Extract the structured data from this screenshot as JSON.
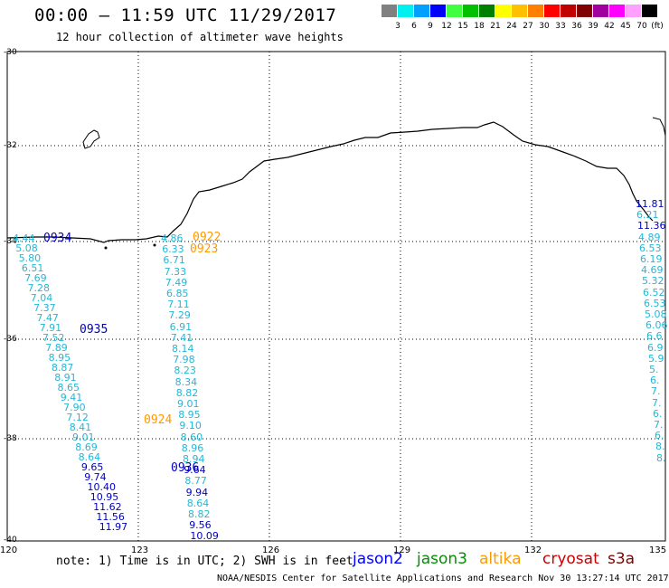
{
  "header": {
    "title": "00:00 – 11:59 UTC 11/29/2017",
    "subtitle": "12 hour collection of altimeter wave heights"
  },
  "legend": {
    "unit": "(ft)",
    "items": [
      {
        "label": "3",
        "color": "#808080"
      },
      {
        "label": "6",
        "color": "#00f0f0"
      },
      {
        "label": "9",
        "color": "#00a0ff"
      },
      {
        "label": "12",
        "color": "#0000ff"
      },
      {
        "label": "15",
        "color": "#40ff40"
      },
      {
        "label": "18",
        "color": "#00c000"
      },
      {
        "label": "21",
        "color": "#008000"
      },
      {
        "label": "24",
        "color": "#ffff00"
      },
      {
        "label": "27",
        "color": "#ffc000"
      },
      {
        "label": "30",
        "color": "#ff8000"
      },
      {
        "label": "33",
        "color": "#ff0000"
      },
      {
        "label": "36",
        "color": "#c00000"
      },
      {
        "label": "39",
        "color": "#800000"
      },
      {
        "label": "42",
        "color": "#a000a0"
      },
      {
        "label": "45",
        "color": "#ff00ff"
      },
      {
        "label": "70",
        "color": "#ffa0ff"
      },
      {
        "label": "",
        "color": "#000000"
      }
    ]
  },
  "axes": {
    "lat_labels": [
      "-30",
      "-32",
      "-34",
      "-36",
      "-38",
      "-40"
    ],
    "lon_labels": [
      "120",
      "123",
      "126",
      "129",
      "132",
      "135"
    ]
  },
  "colors": {
    "jason2": "#0000c0",
    "jason3": "#008000",
    "altika": "#ff9900",
    "cryosat": "#cc0000",
    "s3a": "#800000",
    "cyan": "#22b8d8"
  },
  "passes": {
    "west_a": [
      "4.44",
      "5.08",
      "5.80",
      "6.51",
      "7.69",
      "7.28",
      "7.04",
      "7.37",
      "7.47",
      "7.91",
      "7.52",
      "7.89",
      "8.95",
      "8.87",
      "8.91",
      "8.65",
      "9.41",
      "7.90",
      "7.12",
      "8.41",
      "9.01",
      "8.69",
      "8.64",
      "9.65",
      "9.74",
      "10.40",
      "10.95",
      "11.62",
      "11.56",
      "11.97"
    ],
    "west_b": [
      "4.86",
      "6.33",
      "6.71",
      "7.33",
      "7.49",
      "6.85",
      "7.11",
      "7.29",
      "6.91",
      "7.41",
      "8.14",
      "7.98",
      "8.23",
      "8.34",
      "8.82",
      "9.01",
      "8.95",
      "9.10",
      "8.60",
      "8.96",
      "8.94",
      "9.64",
      "8.77",
      "9.94",
      "8.64",
      "8.82",
      "9.56",
      "10.09"
    ],
    "east": [
      "11.81",
      "6.21",
      "11.36",
      "4.89",
      "6.53",
      "6.19",
      "4.69",
      "5.32",
      "6.52",
      "6.53",
      "5.08",
      "6.06",
      "6.6",
      "6.9",
      "5.9",
      "5.",
      "6.",
      "7.",
      "7.",
      "6.",
      "7.",
      "6.",
      "8.",
      "8."
    ]
  },
  "times": {
    "t0934": "0934",
    "t0935": "0935",
    "t0922": "0922",
    "t0923": "0923",
    "t0924": "0924",
    "t0936": "0936"
  },
  "footer": {
    "note": "note: 1) Time is in UTC; 2) SWH is in feet",
    "sats": [
      "jason2",
      "jason3",
      "altika",
      "cryosat",
      "s3a"
    ],
    "credit": "NOAA/NESDIS Center for Satellite Applications and Research   Nov 30 13:27:14 UTC 2017"
  }
}
